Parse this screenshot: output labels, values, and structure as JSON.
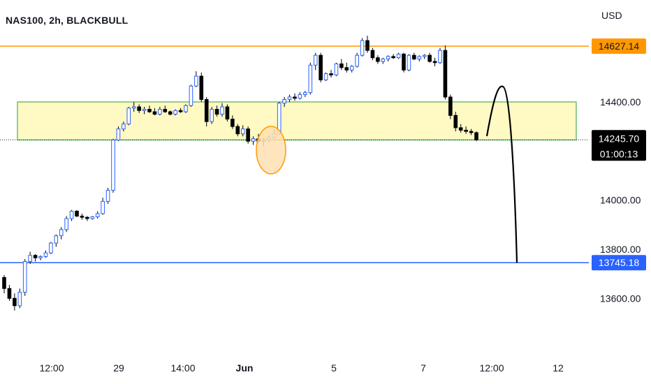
{
  "header": {
    "symbol_line": "NAS100, 2h, BLACKBULL",
    "currency": "USD"
  },
  "colors": {
    "up_body": "#ffffff",
    "up_border": "#2962ff",
    "down_body": "#000000",
    "wick": "#000000",
    "zone_fill": "#fff9c4",
    "zone_border": "#4caf50",
    "resistance": "#ff9800",
    "support": "#2962ff",
    "circle_fill": "#ffe0b2",
    "circle_stroke": "#ff9800",
    "projection": "#000000",
    "current_line": "#131722",
    "tag_current_bg": "#000000",
    "tag_current_text": "#ffffff"
  },
  "chart_data": {
    "type": "candlestick",
    "interval": "2h",
    "y_range": [
      13480,
      14840
    ],
    "y_ticks": [
      {
        "value": 14400,
        "label": "14400.00"
      },
      {
        "value": 14000,
        "label": "14000.00"
      },
      {
        "value": 13800,
        "label": "13800.00"
      },
      {
        "value": 13600,
        "label": "13600.00"
      }
    ],
    "x_ticks": [
      "12:00",
      "29",
      "14:00",
      "Jun",
      "5",
      "7",
      "12:00",
      "12"
    ],
    "levels": {
      "resistance": {
        "value": 14627.14,
        "label": "14627.14"
      },
      "support": {
        "value": 13745.18,
        "label": "13745.18"
      },
      "current": {
        "value": 14245.7,
        "label": "14245.70",
        "countdown": "01:00:13"
      }
    },
    "zone": {
      "top": 14400,
      "bottom": 14245
    },
    "candles": [
      [
        13685,
        13695,
        13620,
        13640
      ],
      [
        13640,
        13655,
        13590,
        13600
      ],
      [
        13600,
        13620,
        13550,
        13570
      ],
      [
        13570,
        13640,
        13560,
        13625
      ],
      [
        13625,
        13760,
        13610,
        13750
      ],
      [
        13750,
        13790,
        13740,
        13775
      ],
      [
        13775,
        13780,
        13750,
        13765
      ],
      [
        13765,
        13775,
        13755,
        13770
      ],
      [
        13770,
        13795,
        13765,
        13785
      ],
      [
        13785,
        13830,
        13780,
        13825
      ],
      [
        13825,
        13860,
        13810,
        13855
      ],
      [
        13855,
        13890,
        13840,
        13880
      ],
      [
        13880,
        13935,
        13870,
        13925
      ],
      [
        13925,
        13960,
        13915,
        13955
      ],
      [
        13955,
        13960,
        13930,
        13935
      ],
      [
        13935,
        13945,
        13920,
        13930
      ],
      [
        13930,
        13935,
        13915,
        13925
      ],
      [
        13925,
        13935,
        13920,
        13932
      ],
      [
        13932,
        13955,
        13925,
        13945
      ],
      [
        13945,
        14010,
        13940,
        13995
      ],
      [
        13995,
        14050,
        13985,
        14040
      ],
      [
        14040,
        14250,
        14030,
        14245
      ],
      [
        14245,
        14300,
        14240,
        14290
      ],
      [
        14290,
        14320,
        14280,
        14310
      ],
      [
        14310,
        14380,
        14305,
        14375
      ],
      [
        14375,
        14400,
        14360,
        14380
      ],
      [
        14380,
        14390,
        14355,
        14365
      ],
      [
        14365,
        14380,
        14350,
        14370
      ],
      [
        14370,
        14385,
        14355,
        14360
      ],
      [
        14360,
        14375,
        14345,
        14350
      ],
      [
        14350,
        14380,
        14345,
        14370
      ],
      [
        14370,
        14385,
        14355,
        14360
      ],
      [
        14360,
        14365,
        14345,
        14350
      ],
      [
        14350,
        14370,
        14345,
        14365
      ],
      [
        14365,
        14375,
        14355,
        14360
      ],
      [
        14360,
        14390,
        14355,
        14385
      ],
      [
        14385,
        14470,
        14380,
        14465
      ],
      [
        14465,
        14525,
        14460,
        14505
      ],
      [
        14505,
        14520,
        14400,
        14410
      ],
      [
        14410,
        14420,
        14300,
        14320
      ],
      [
        14320,
        14380,
        14310,
        14370
      ],
      [
        14370,
        14385,
        14340,
        14350
      ],
      [
        14350,
        14395,
        14340,
        14380
      ],
      [
        14380,
        14390,
        14320,
        14330
      ],
      [
        14330,
        14345,
        14290,
        14300
      ],
      [
        14300,
        14310,
        14260,
        14270
      ],
      [
        14270,
        14305,
        14260,
        14290
      ],
      [
        14290,
        14300,
        14230,
        14240
      ],
      [
        14240,
        14260,
        14225,
        14250
      ],
      [
        14250,
        14270,
        14230,
        14240
      ],
      [
        14240,
        14255,
        14220,
        14245
      ],
      [
        14245,
        14265,
        14235,
        14255
      ],
      [
        14255,
        14290,
        14250,
        14270
      ],
      [
        14270,
        14400,
        14265,
        14395
      ],
      [
        14395,
        14420,
        14380,
        14410
      ],
      [
        14410,
        14430,
        14400,
        14420
      ],
      [
        14420,
        14435,
        14405,
        14415
      ],
      [
        14415,
        14440,
        14410,
        14430
      ],
      [
        14430,
        14445,
        14420,
        14438
      ],
      [
        14438,
        14560,
        14430,
        14550
      ],
      [
        14550,
        14600,
        14530,
        14590
      ],
      [
        14590,
        14600,
        14480,
        14490
      ],
      [
        14490,
        14520,
        14485,
        14515
      ],
      [
        14515,
        14530,
        14500,
        14510
      ],
      [
        14510,
        14560,
        14505,
        14555
      ],
      [
        14555,
        14575,
        14530,
        14540
      ],
      [
        14540,
        14560,
        14520,
        14530
      ],
      [
        14530,
        14550,
        14520,
        14545
      ],
      [
        14545,
        14600,
        14540,
        14590
      ],
      [
        14590,
        14660,
        14585,
        14650
      ],
      [
        14650,
        14670,
        14600,
        14610
      ],
      [
        14610,
        14620,
        14570,
        14580
      ],
      [
        14580,
        14590,
        14555,
        14565
      ],
      [
        14565,
        14580,
        14555,
        14575
      ],
      [
        14575,
        14590,
        14565,
        14585
      ],
      [
        14585,
        14595,
        14575,
        14580
      ],
      [
        14580,
        14600,
        14575,
        14595
      ],
      [
        14595,
        14600,
        14520,
        14530
      ],
      [
        14530,
        14595,
        14525,
        14590
      ],
      [
        14590,
        14600,
        14570,
        14575
      ],
      [
        14575,
        14590,
        14565,
        14585
      ],
      [
        14585,
        14595,
        14575,
        14590
      ],
      [
        14590,
        14600,
        14560,
        14565
      ],
      [
        14565,
        14580,
        14545,
        14560
      ],
      [
        14560,
        14620,
        14555,
        14610
      ],
      [
        14610,
        14630,
        14410,
        14420
      ],
      [
        14420,
        14430,
        14330,
        14345
      ],
      [
        14345,
        14360,
        14280,
        14295
      ],
      [
        14295,
        14310,
        14275,
        14285
      ],
      [
        14285,
        14300,
        14270,
        14280
      ],
      [
        14280,
        14290,
        14265,
        14275
      ],
      [
        14275,
        14280,
        14240,
        14246
      ]
    ]
  }
}
